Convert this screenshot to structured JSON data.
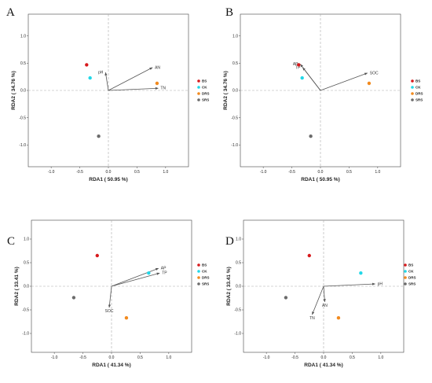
{
  "chart_data": [
    {
      "type": "scatter",
      "panel_label": "A",
      "xlabel": "RDA1 ( 50.95 %)",
      "ylabel": "RDA2 ( 34.76 %)",
      "xlim": [
        -1.4,
        1.4
      ],
      "ylim": [
        -1.4,
        1.4
      ],
      "xticks": [
        "-1.0",
        "-0.5",
        "0.0",
        "0.5",
        "1.0"
      ],
      "yticks": [
        "1.0",
        "0.5",
        "0.0",
        "-0.5",
        "-1.0"
      ],
      "points": [
        {
          "group": "BS",
          "x": -0.38,
          "y": 0.47
        },
        {
          "group": "CK",
          "x": -0.32,
          "y": 0.23
        },
        {
          "group": "DRS",
          "x": 0.85,
          "y": 0.13
        },
        {
          "group": "SRS",
          "x": -0.17,
          "y": -0.84
        }
      ],
      "arrows": [
        {
          "label": "AN",
          "x": 0.77,
          "y": 0.42
        },
        {
          "label": "TN",
          "x": 0.87,
          "y": 0.04
        },
        {
          "label": "pH",
          "x": -0.05,
          "y": 0.33
        }
      ],
      "legend": [
        {
          "label": "BS",
          "color": "#d7191c"
        },
        {
          "label": "CK",
          "color": "#22d8e8"
        },
        {
          "label": "DRS",
          "color": "#f28a1e"
        },
        {
          "label": "SRS",
          "color": "#6b6b6b"
        }
      ]
    },
    {
      "type": "scatter",
      "panel_label": "B",
      "xlabel": "RDA1 ( 50.95 %)",
      "ylabel": "RDA2 ( 34.76 %)",
      "xlim": [
        -1.4,
        1.4
      ],
      "ylim": [
        -1.4,
        1.4
      ],
      "xticks": [
        "-1.0",
        "-0.5",
        "0.0",
        "0.5",
        "1.0"
      ],
      "yticks": [
        "1.0",
        "0.5",
        "0.0",
        "-0.5",
        "-1.0"
      ],
      "points": [
        {
          "group": "BS",
          "x": -0.38,
          "y": 0.47
        },
        {
          "group": "CK",
          "x": -0.32,
          "y": 0.23
        },
        {
          "group": "DRS",
          "x": 0.85,
          "y": 0.13
        },
        {
          "group": "SRS",
          "x": -0.17,
          "y": -0.84
        }
      ],
      "arrows": [
        {
          "label": "SOC",
          "x": 0.82,
          "y": 0.32
        },
        {
          "label": "AP",
          "x": -0.35,
          "y": 0.48
        },
        {
          "label": "TP",
          "x": -0.31,
          "y": 0.42
        }
      ],
      "legend": [
        {
          "label": "BS",
          "color": "#d7191c"
        },
        {
          "label": "CK",
          "color": "#22d8e8"
        },
        {
          "label": "DRS",
          "color": "#f28a1e"
        },
        {
          "label": "SRS",
          "color": "#6b6b6b"
        }
      ]
    },
    {
      "type": "scatter",
      "panel_label": "C",
      "xlabel": "RDA1 ( 41.34 %)",
      "ylabel": "RDA2 ( 33.41 %)",
      "xlim": [
        -1.4,
        1.4
      ],
      "ylim": [
        -1.4,
        1.4
      ],
      "xticks": [
        "-1.0",
        "-0.5",
        "0.0",
        "0.5",
        "1.0"
      ],
      "yticks": [
        "1.0",
        "0.5",
        "0.0",
        "-0.5",
        "-1.0"
      ],
      "points": [
        {
          "group": "BS",
          "x": -0.25,
          "y": 0.65
        },
        {
          "group": "CK",
          "x": 0.65,
          "y": 0.28
        },
        {
          "group": "DRS",
          "x": 0.26,
          "y": -0.67
        },
        {
          "group": "SRS",
          "x": -0.66,
          "y": -0.24
        }
      ],
      "arrows": [
        {
          "label": "AP",
          "x": 0.82,
          "y": 0.38
        },
        {
          "label": "TP",
          "x": 0.84,
          "y": 0.28
        },
        {
          "label": "SOC",
          "x": -0.04,
          "y": -0.45
        }
      ],
      "legend": [
        {
          "label": "BS",
          "color": "#d7191c"
        },
        {
          "label": "CK",
          "color": "#22d8e8"
        },
        {
          "label": "DRS",
          "color": "#f28a1e"
        },
        {
          "label": "SRS",
          "color": "#6b6b6b"
        }
      ]
    },
    {
      "type": "scatter",
      "panel_label": "D",
      "xlabel": "RDA1 ( 41.34 %)",
      "ylabel": "RDA2 ( 33.41 %)",
      "xlim": [
        -1.4,
        1.4
      ],
      "ylim": [
        -1.4,
        1.4
      ],
      "xticks": [
        "-1.0",
        "-0.5",
        "0.0",
        "0.5",
        "1.0"
      ],
      "yticks": [
        "1.0",
        "0.5",
        "0.0",
        "-0.5",
        "-1.0"
      ],
      "points": [
        {
          "group": "BS",
          "x": -0.25,
          "y": 0.65
        },
        {
          "group": "CK",
          "x": 0.65,
          "y": 0.28
        },
        {
          "group": "DRS",
          "x": 0.26,
          "y": -0.67
        },
        {
          "group": "SRS",
          "x": -0.66,
          "y": -0.24
        }
      ],
      "arrows": [
        {
          "label": "pH",
          "x": 0.9,
          "y": 0.05
        },
        {
          "label": "AN",
          "x": 0.02,
          "y": -0.33
        },
        {
          "label": "TN",
          "x": -0.2,
          "y": -0.6
        }
      ],
      "legend": [
        {
          "label": "BS",
          "color": "#d7191c"
        },
        {
          "label": "CK",
          "color": "#22d8e8"
        },
        {
          "label": "DRS",
          "color": "#f28a1e"
        },
        {
          "label": "SRS",
          "color": "#6b6b6b"
        }
      ]
    }
  ]
}
